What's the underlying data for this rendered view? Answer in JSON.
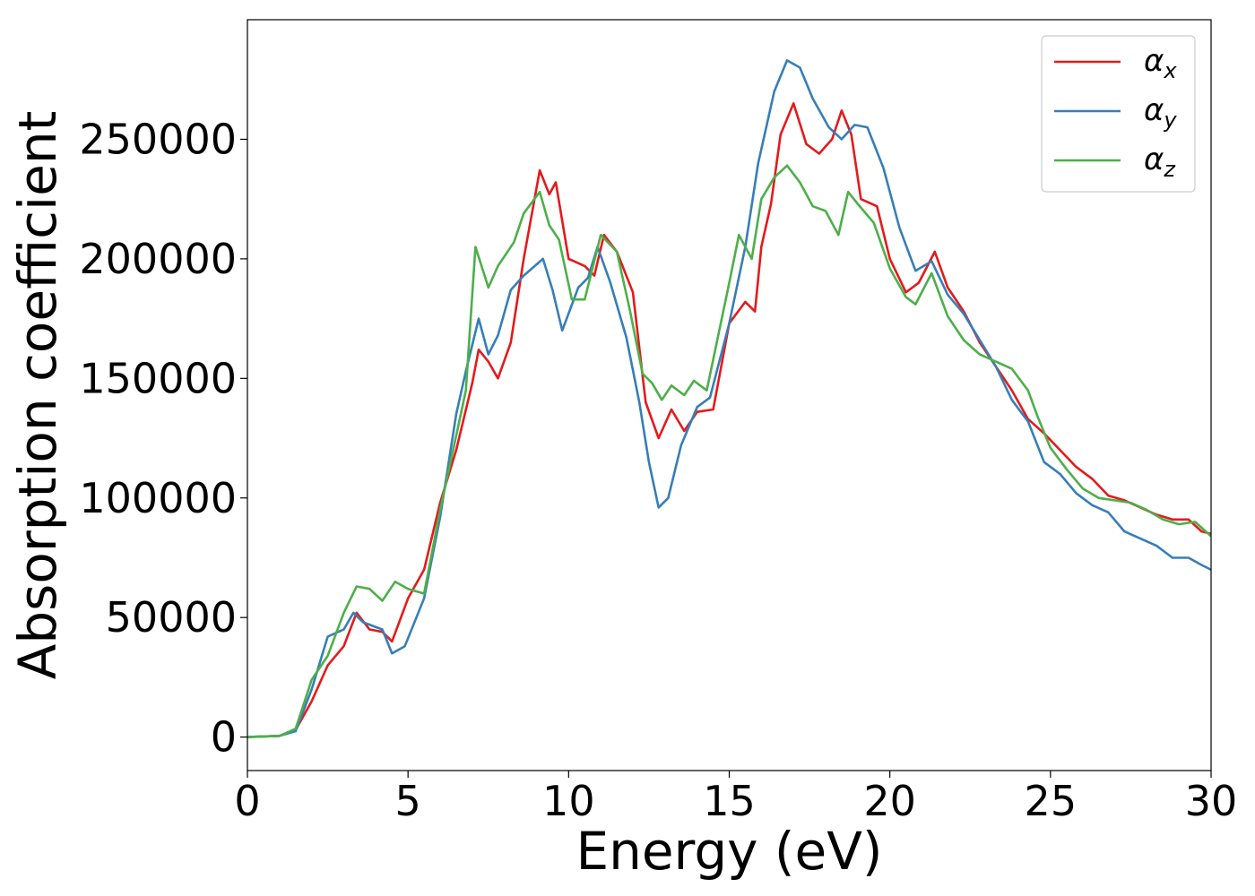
{
  "chart_data": {
    "type": "line",
    "xlabel": "Energy (eV)",
    "ylabel": "Absorption coefficient",
    "xlim": [
      0,
      30
    ],
    "ylim": [
      -14000,
      300000
    ],
    "xticks": [
      0,
      5,
      10,
      15,
      20,
      25,
      30
    ],
    "xtick_labels": [
      "0",
      "5",
      "10",
      "15",
      "20",
      "25",
      "30"
    ],
    "yticks": [
      0,
      50000,
      100000,
      150000,
      200000,
      250000
    ],
    "ytick_labels": [
      "0",
      "50000",
      "100000",
      "150000",
      "200000",
      "250000"
    ],
    "grid": false,
    "legend_position": "top-right",
    "series": [
      {
        "name": "α",
        "subscript": "x",
        "color": "#e41a1c",
        "points": [
          [
            0,
            0
          ],
          [
            1,
            500
          ],
          [
            1.5,
            3000
          ],
          [
            2,
            15000
          ],
          [
            2.5,
            30000
          ],
          [
            3,
            38000
          ],
          [
            3.4,
            52000
          ],
          [
            3.8,
            45000
          ],
          [
            4.2,
            44000
          ],
          [
            4.5,
            40000
          ],
          [
            5,
            58000
          ],
          [
            5.5,
            70000
          ],
          [
            6,
            98000
          ],
          [
            6.5,
            120000
          ],
          [
            7,
            148000
          ],
          [
            7.2,
            162000
          ],
          [
            7.5,
            157000
          ],
          [
            7.8,
            150000
          ],
          [
            8.2,
            165000
          ],
          [
            8.6,
            200000
          ],
          [
            9.1,
            237000
          ],
          [
            9.4,
            227000
          ],
          [
            9.6,
            232000
          ],
          [
            10,
            200000
          ],
          [
            10.5,
            197000
          ],
          [
            10.8,
            193000
          ],
          [
            11.1,
            210000
          ],
          [
            11.5,
            203000
          ],
          [
            12,
            186000
          ],
          [
            12.4,
            140000
          ],
          [
            12.8,
            125000
          ],
          [
            13.2,
            137000
          ],
          [
            13.6,
            128000
          ],
          [
            14,
            136000
          ],
          [
            14.5,
            137000
          ],
          [
            15,
            173000
          ],
          [
            15.5,
            182000
          ],
          [
            15.8,
            178000
          ],
          [
            16,
            205000
          ],
          [
            16.3,
            223000
          ],
          [
            16.6,
            252000
          ],
          [
            17,
            265000
          ],
          [
            17.4,
            248000
          ],
          [
            17.8,
            244000
          ],
          [
            18.2,
            250000
          ],
          [
            18.5,
            262000
          ],
          [
            18.8,
            252000
          ],
          [
            19.1,
            225000
          ],
          [
            19.6,
            222000
          ],
          [
            20,
            200000
          ],
          [
            20.5,
            186000
          ],
          [
            20.9,
            190000
          ],
          [
            21.4,
            203000
          ],
          [
            21.8,
            188000
          ],
          [
            22.3,
            178000
          ],
          [
            22.8,
            165000
          ],
          [
            23.3,
            155000
          ],
          [
            23.8,
            145000
          ],
          [
            24.3,
            133000
          ],
          [
            24.8,
            127000
          ],
          [
            25.3,
            120000
          ],
          [
            25.8,
            113000
          ],
          [
            26.3,
            108000
          ],
          [
            26.8,
            101000
          ],
          [
            27.3,
            99000
          ],
          [
            27.8,
            96000
          ],
          [
            28.3,
            93000
          ],
          [
            28.8,
            91000
          ],
          [
            29.3,
            91000
          ],
          [
            29.7,
            86000
          ],
          [
            30,
            85000
          ]
        ]
      },
      {
        "name": "α",
        "subscript": "y",
        "color": "#377eb8",
        "points": [
          [
            0,
            0
          ],
          [
            1,
            500
          ],
          [
            1.5,
            2500
          ],
          [
            2,
            20000
          ],
          [
            2.5,
            42000
          ],
          [
            3,
            45000
          ],
          [
            3.3,
            52000
          ],
          [
            3.6,
            48000
          ],
          [
            4.2,
            45000
          ],
          [
            4.5,
            35000
          ],
          [
            4.9,
            38000
          ],
          [
            5.5,
            58000
          ],
          [
            6,
            92000
          ],
          [
            6.5,
            135000
          ],
          [
            6.8,
            153000
          ],
          [
            7.2,
            175000
          ],
          [
            7.5,
            160000
          ],
          [
            7.8,
            168000
          ],
          [
            8.2,
            187000
          ],
          [
            8.6,
            193000
          ],
          [
            9.2,
            200000
          ],
          [
            9.5,
            187000
          ],
          [
            9.8,
            170000
          ],
          [
            10.3,
            188000
          ],
          [
            10.6,
            192000
          ],
          [
            10.9,
            205000
          ],
          [
            11.3,
            190000
          ],
          [
            11.8,
            167000
          ],
          [
            12.2,
            140000
          ],
          [
            12.5,
            115000
          ],
          [
            12.8,
            96000
          ],
          [
            13.1,
            100000
          ],
          [
            13.5,
            122000
          ],
          [
            14,
            138000
          ],
          [
            14.4,
            142000
          ],
          [
            15,
            173000
          ],
          [
            15.5,
            205000
          ],
          [
            15.9,
            240000
          ],
          [
            16.4,
            270000
          ],
          [
            16.8,
            283000
          ],
          [
            17.2,
            280000
          ],
          [
            17.6,
            267000
          ],
          [
            18.1,
            255000
          ],
          [
            18.5,
            250000
          ],
          [
            18.9,
            256000
          ],
          [
            19.3,
            255000
          ],
          [
            19.8,
            238000
          ],
          [
            20.3,
            213000
          ],
          [
            20.8,
            195000
          ],
          [
            21.3,
            199000
          ],
          [
            21.8,
            185000
          ],
          [
            22.3,
            177000
          ],
          [
            22.8,
            166000
          ],
          [
            23.3,
            155000
          ],
          [
            23.8,
            141000
          ],
          [
            24.3,
            132000
          ],
          [
            24.8,
            115000
          ],
          [
            25.3,
            110000
          ],
          [
            25.8,
            102000
          ],
          [
            26.3,
            97000
          ],
          [
            26.8,
            94000
          ],
          [
            27.3,
            86000
          ],
          [
            27.8,
            83000
          ],
          [
            28.3,
            80000
          ],
          [
            28.8,
            75000
          ],
          [
            29.3,
            75000
          ],
          [
            29.7,
            72000
          ],
          [
            30,
            70000
          ]
        ]
      },
      {
        "name": "α",
        "subscript": "z",
        "color": "#4daf4a",
        "points": [
          [
            0,
            0
          ],
          [
            1,
            500
          ],
          [
            1.5,
            3500
          ],
          [
            2,
            24000
          ],
          [
            2.5,
            34000
          ],
          [
            3,
            52000
          ],
          [
            3.4,
            63000
          ],
          [
            3.8,
            62000
          ],
          [
            4.2,
            57000
          ],
          [
            4.6,
            65000
          ],
          [
            5,
            62000
          ],
          [
            5.5,
            60000
          ],
          [
            6,
            95000
          ],
          [
            6.5,
            126000
          ],
          [
            6.8,
            145000
          ],
          [
            7.1,
            205000
          ],
          [
            7.5,
            188000
          ],
          [
            7.8,
            197000
          ],
          [
            8.3,
            207000
          ],
          [
            8.6,
            219000
          ],
          [
            9.1,
            228000
          ],
          [
            9.4,
            214000
          ],
          [
            9.7,
            208000
          ],
          [
            10.1,
            183000
          ],
          [
            10.5,
            183000
          ],
          [
            11,
            210000
          ],
          [
            11.5,
            203000
          ],
          [
            11.9,
            179000
          ],
          [
            12.3,
            152000
          ],
          [
            12.6,
            148000
          ],
          [
            12.9,
            141000
          ],
          [
            13.2,
            147000
          ],
          [
            13.6,
            143000
          ],
          [
            13.9,
            149000
          ],
          [
            14.3,
            145000
          ],
          [
            15,
            190000
          ],
          [
            15.3,
            210000
          ],
          [
            15.7,
            200000
          ],
          [
            16,
            225000
          ],
          [
            16.4,
            234000
          ],
          [
            16.8,
            239000
          ],
          [
            17.2,
            232000
          ],
          [
            17.6,
            222000
          ],
          [
            18,
            220000
          ],
          [
            18.4,
            210000
          ],
          [
            18.7,
            228000
          ],
          [
            19,
            223000
          ],
          [
            19.5,
            215000
          ],
          [
            20,
            196000
          ],
          [
            20.5,
            184000
          ],
          [
            20.8,
            181000
          ],
          [
            21.3,
            194000
          ],
          [
            21.8,
            176000
          ],
          [
            22.3,
            166000
          ],
          [
            22.8,
            160000
          ],
          [
            23.3,
            157000
          ],
          [
            23.8,
            154000
          ],
          [
            24.3,
            145000
          ],
          [
            24.6,
            134000
          ],
          [
            25,
            121000
          ],
          [
            25.5,
            112000
          ],
          [
            26,
            104000
          ],
          [
            26.5,
            100000
          ],
          [
            27,
            99000
          ],
          [
            27.5,
            98000
          ],
          [
            28,
            95000
          ],
          [
            28.5,
            91000
          ],
          [
            29,
            89000
          ],
          [
            29.5,
            90000
          ],
          [
            30,
            84000
          ]
        ]
      }
    ]
  }
}
